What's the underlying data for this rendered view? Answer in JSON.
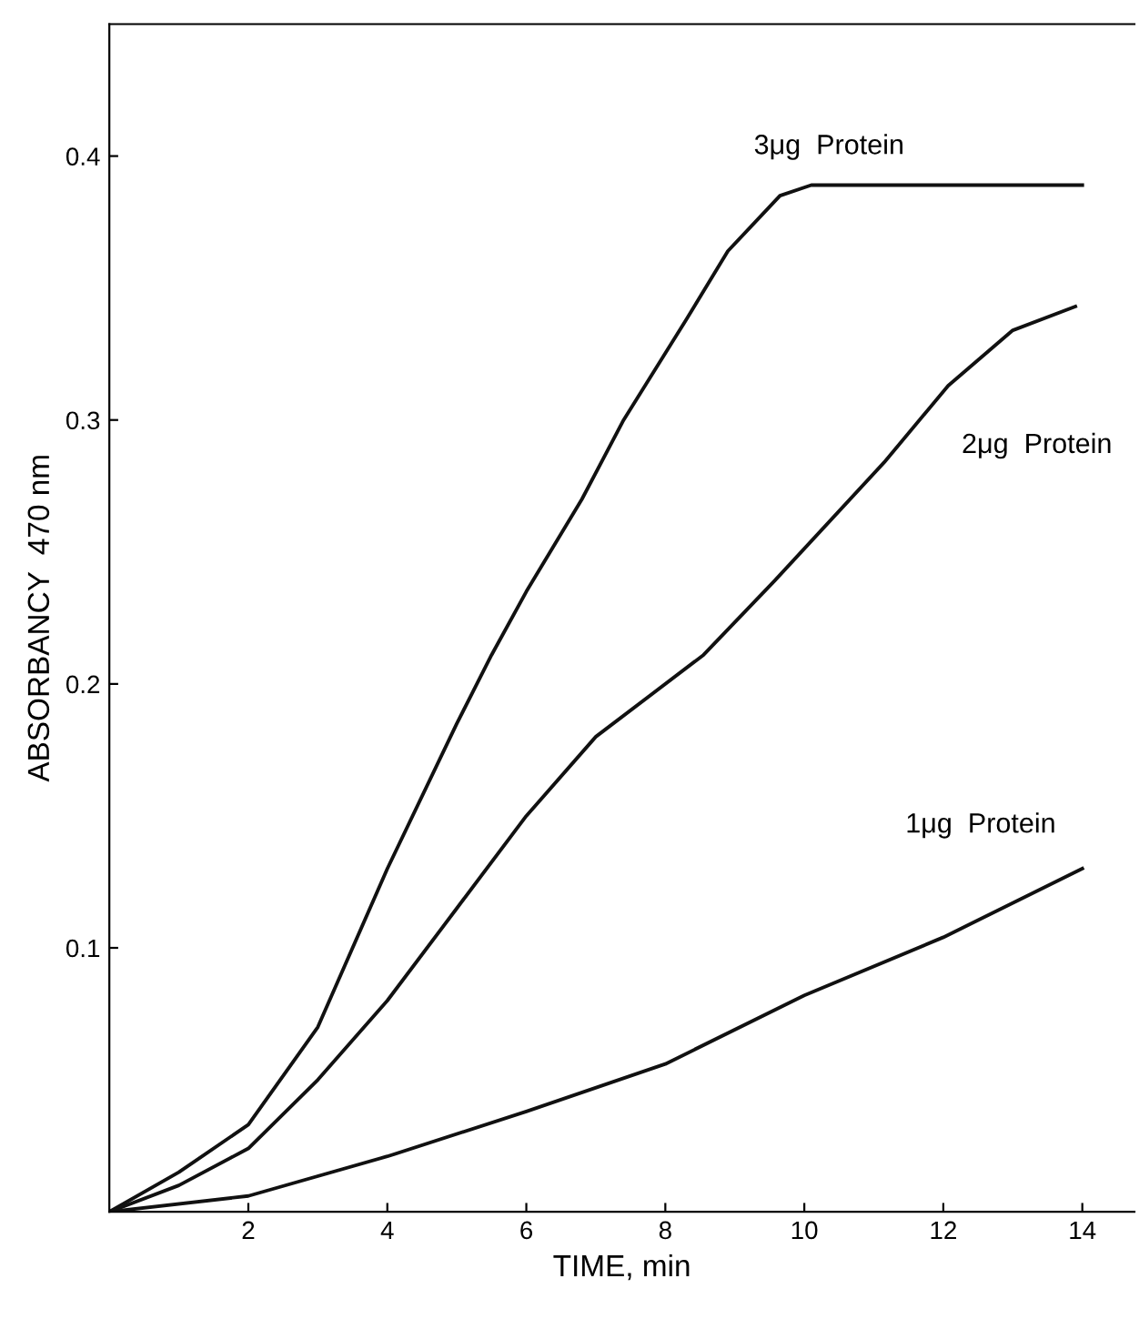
{
  "chart_data": {
    "type": "line",
    "xlabel": "TIME, min",
    "ylabel": "ABSORBANCY  470 nm",
    "xlim": [
      0,
      14.75
    ],
    "ylim": [
      0,
      0.45
    ],
    "xticks": [
      2,
      4,
      6,
      8,
      10,
      12,
      14
    ],
    "yticks": [
      {
        "value": 0.1,
        "label": "0.1"
      },
      {
        "value": 0.2,
        "label": "0.2"
      },
      {
        "value": 0.3,
        "label": "0.3"
      },
      {
        "value": 0.4,
        "label": "0.4"
      }
    ],
    "grid": false,
    "legend": false,
    "marker": "none",
    "line_style": "solid",
    "series": [
      {
        "name": "3μg  Protein",
        "color": "#111111",
        "x": [
          0,
          1,
          2,
          3,
          4,
          5,
          5.5,
          6,
          6.8,
          7.4,
          8.3,
          8.9,
          9.65,
          10.1,
          12,
          14
        ],
        "values": [
          0,
          0.015,
          0.033,
          0.07,
          0.13,
          0.185,
          0.211,
          0.235,
          0.27,
          0.3,
          0.338,
          0.364,
          0.385,
          0.389,
          0.389,
          0.389
        ]
      },
      {
        "name": "2μg  Protein",
        "color": "#111111",
        "x": [
          0,
          1,
          2,
          3,
          4,
          5,
          6,
          7,
          8.55,
          9.57,
          11.15,
          12.07,
          13,
          13.9
        ],
        "values": [
          0,
          0.01,
          0.024,
          0.05,
          0.08,
          0.115,
          0.15,
          0.18,
          0.211,
          0.239,
          0.284,
          0.313,
          0.334,
          0.343
        ]
      },
      {
        "name": "1μg  Protein",
        "color": "#111111",
        "x": [
          0,
          2,
          4,
          6,
          8,
          10,
          12,
          14
        ],
        "values": [
          0,
          0.006,
          0.021,
          0.038,
          0.056,
          0.082,
          0.104,
          0.13
        ]
      }
    ]
  }
}
